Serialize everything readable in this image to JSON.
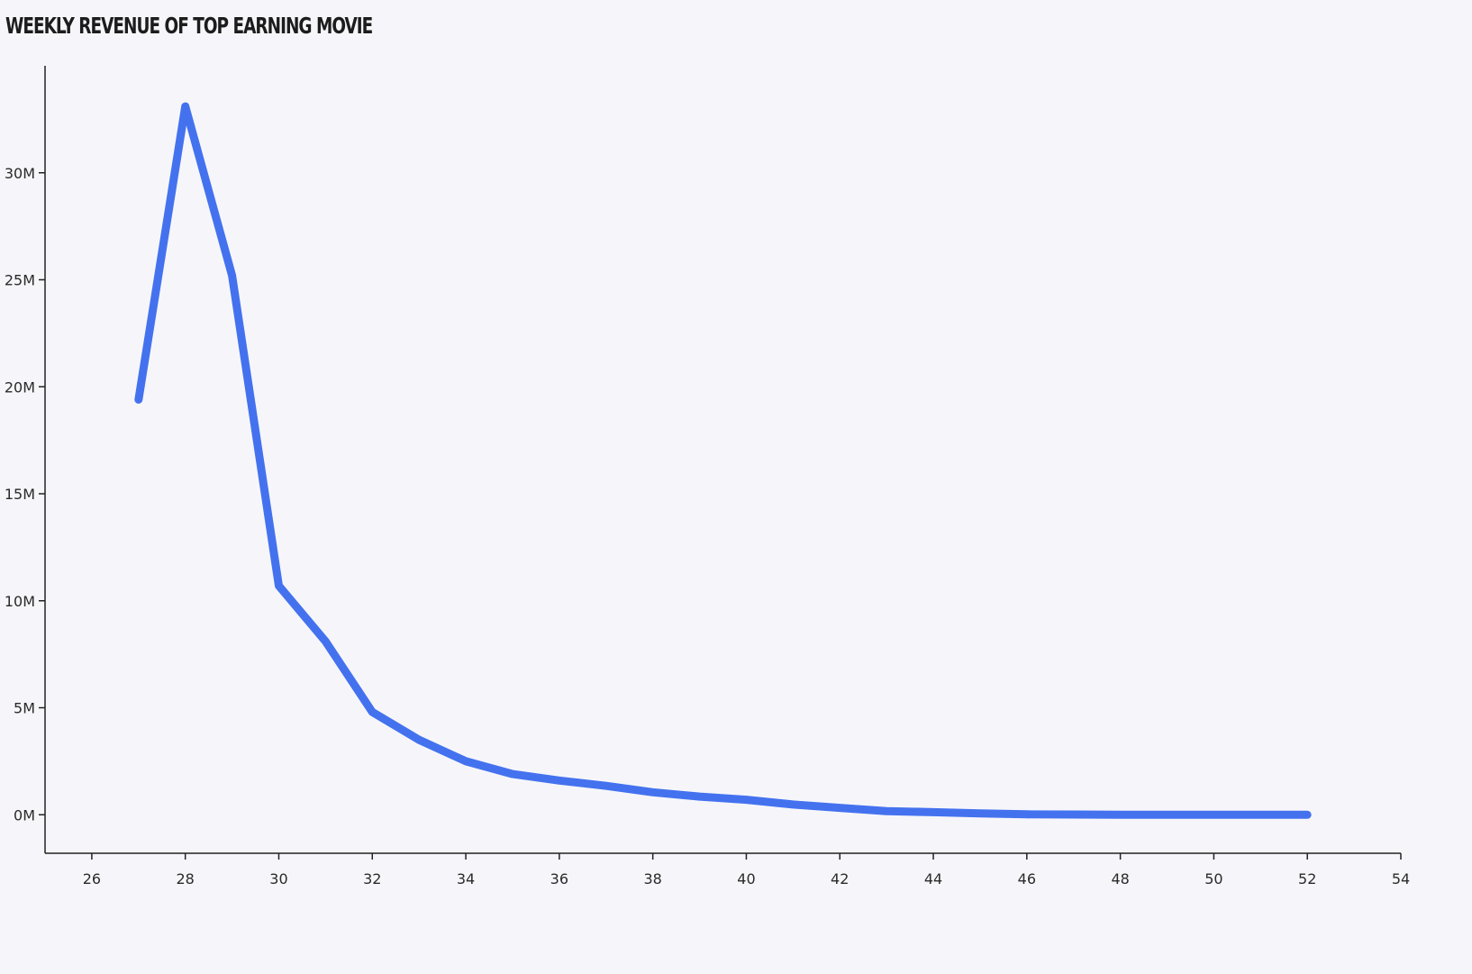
{
  "chart_data": {
    "type": "line",
    "title": "Weekly Revenue of Top Earning Movie",
    "xlabel": "",
    "ylabel": "",
    "xlim": [
      25,
      54
    ],
    "ylim": [
      -1.8,
      35
    ],
    "x_ticks": [
      "26",
      "28",
      "30",
      "32",
      "34",
      "36",
      "38",
      "40",
      "42",
      "44",
      "46",
      "48",
      "50",
      "52",
      "54"
    ],
    "y_ticks": [
      "0M",
      "5M",
      "10M",
      "15M",
      "20M",
      "25M",
      "30M"
    ],
    "grid": false,
    "legend": "none",
    "series": [
      {
        "color": "#4472ef",
        "x": [
          27,
          28,
          29,
          30,
          31,
          32,
          33,
          34,
          35,
          36,
          37,
          38,
          39,
          40,
          41,
          42,
          43,
          44,
          45,
          46,
          47,
          48,
          49,
          50,
          51,
          52
        ],
        "y": [
          19.4,
          33.1,
          25.2,
          10.7,
          8.1,
          4.8,
          3.5,
          2.5,
          1.9,
          1.6,
          1.35,
          1.05,
          0.85,
          0.7,
          0.48,
          0.32,
          0.17,
          0.12,
          0.06,
          0.02,
          0.01,
          0.0,
          0.0,
          0.0,
          0.0,
          0.0
        ]
      }
    ]
  }
}
